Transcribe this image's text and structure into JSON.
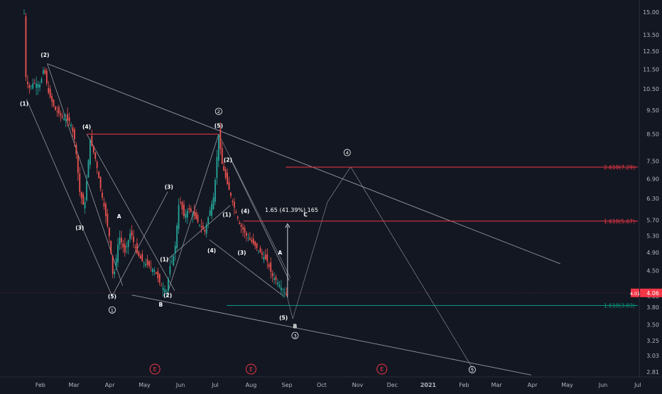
{
  "chart_data": {
    "type": "candlestick",
    "yscale": "log",
    "ylim": [
      2.75,
      16.0
    ],
    "x_range_days": [
      -20,
      570
    ],
    "month_ticks": [
      {
        "label": "Feb",
        "day": 14
      },
      {
        "label": "Mar",
        "day": 43
      },
      {
        "label": "Apr",
        "day": 74
      },
      {
        "label": "May",
        "day": 104
      },
      {
        "label": "Jun",
        "day": 135
      },
      {
        "label": "Jul",
        "day": 165
      },
      {
        "label": "Aug",
        "day": 196
      },
      {
        "label": "Sep",
        "day": 227
      },
      {
        "label": "Oct",
        "day": 257
      },
      {
        "label": "Nov",
        "day": 288
      },
      {
        "label": "Dec",
        "day": 318
      },
      {
        "label": "2021",
        "day": 349
      },
      {
        "label": "Feb",
        "day": 380
      },
      {
        "label": "Mar",
        "day": 408
      },
      {
        "label": "Apr",
        "day": 439
      },
      {
        "label": "May",
        "day": 469
      },
      {
        "label": "Jun",
        "day": 500
      },
      {
        "label": "Jul",
        "day": 530
      }
    ],
    "y_ticks": [
      "15.00",
      "13.50",
      "12.50",
      "11.50",
      "10.50",
      "9.50",
      "8.50",
      "7.50",
      "6.90",
      "6.30",
      "5.70",
      "5.30",
      "4.90",
      "4.50",
      "4.00",
      "3.80",
      "3.50",
      "3.25",
      "3.03",
      "2.81"
    ],
    "price_path": [
      [
        0,
        14.9
      ],
      [
        1,
        11.2
      ],
      [
        4,
        10.5
      ],
      [
        8,
        10.8
      ],
      [
        14,
        10.7
      ],
      [
        17,
        11.6
      ],
      [
        21,
        10.3
      ],
      [
        27,
        9.5
      ],
      [
        33,
        9.2
      ],
      [
        40,
        9.0
      ],
      [
        44,
        8.2
      ],
      [
        48,
        6.5
      ],
      [
        52,
        6.0
      ],
      [
        57,
        8.3
      ],
      [
        62,
        7.5
      ],
      [
        66,
        6.6
      ],
      [
        70,
        5.9
      ],
      [
        74,
        5.2
      ],
      [
        77,
        4.3
      ],
      [
        82,
        5.3
      ],
      [
        87,
        4.9
      ],
      [
        92,
        5.4
      ],
      [
        97,
        4.9
      ],
      [
        102,
        4.7
      ],
      [
        108,
        4.6
      ],
      [
        113,
        4.5
      ],
      [
        118,
        4.2
      ],
      [
        123,
        4.1
      ],
      [
        126,
        4.6
      ],
      [
        130,
        4.9
      ],
      [
        134,
        6.3
      ],
      [
        138,
        5.8
      ],
      [
        142,
        6.0
      ],
      [
        147,
        5.8
      ],
      [
        151,
        5.6
      ],
      [
        156,
        5.4
      ],
      [
        160,
        5.9
      ],
      [
        164,
        6.4
      ],
      [
        168,
        8.5
      ],
      [
        171,
        7.4
      ],
      [
        175,
        6.8
      ],
      [
        180,
        6.2
      ],
      [
        186,
        5.6
      ],
      [
        192,
        5.3
      ],
      [
        198,
        5.1
      ],
      [
        204,
        4.9
      ],
      [
        210,
        4.7
      ],
      [
        214,
        4.4
      ],
      [
        218,
        4.3
      ],
      [
        224,
        4.1
      ],
      [
        227,
        4.0
      ]
    ],
    "last_price": "4.06",
    "current_label": "4.01",
    "fib_levels": [
      {
        "label": "2.618(7.29)",
        "value": 7.29,
        "color": "#f23645"
      },
      {
        "label": "1.618(5.67)",
        "value": 5.67,
        "color": "#f23645"
      },
      {
        "label": "1.618(3.83)",
        "value": 3.83,
        "color": "#089981"
      }
    ],
    "measure_label": "1.65 (41.39%) 165",
    "wave_labels": [
      {
        "text": "(2)",
        "day": 18,
        "price": 12.3
      },
      {
        "text": "(1)",
        "day": 0,
        "price": 9.8
      },
      {
        "text": "(4)",
        "day": 54,
        "price": 8.8
      },
      {
        "text": "(3)",
        "day": 48,
        "price": 5.5
      },
      {
        "text": "A",
        "day": 82,
        "price": 5.8
      },
      {
        "text": "(5)",
        "day": 76,
        "price": 4.0
      },
      {
        "text": "1",
        "day": 76,
        "price": 3.75,
        "circled": true
      },
      {
        "text": "(3)",
        "day": 125,
        "price": 6.65
      },
      {
        "text": "(1)",
        "day": 121,
        "price": 4.75
      },
      {
        "text": "(2)",
        "day": 124,
        "price": 4.02
      },
      {
        "text": "B",
        "day": 118,
        "price": 3.85
      },
      {
        "text": "2",
        "day": 168,
        "price": 9.45,
        "circled": true
      },
      {
        "text": "(5)",
        "day": 168,
        "price": 8.85
      },
      {
        "text": "(4)",
        "day": 162,
        "price": 4.95
      },
      {
        "text": "(1)",
        "day": 175,
        "price": 5.85
      },
      {
        "text": "(2)",
        "day": 176,
        "price": 7.55
      },
      {
        "text": "(4)",
        "day": 191,
        "price": 5.95
      },
      {
        "text": "(3)",
        "day": 188,
        "price": 4.9
      },
      {
        "text": "A",
        "day": 221,
        "price": 4.9
      },
      {
        "text": "(5)",
        "day": 224,
        "price": 3.62
      },
      {
        "text": "B",
        "day": 234,
        "price": 3.48
      },
      {
        "text": "3",
        "day": 234,
        "price": 3.33,
        "circled": true
      },
      {
        "text": "C",
        "day": 243,
        "price": 5.85
      },
      {
        "text": "4",
        "day": 279,
        "price": 7.8,
        "circled": true
      },
      {
        "text": "5",
        "day": 387,
        "price": 2.84,
        "circled": true
      }
    ],
    "event_markers": [
      {
        "label": "E",
        "day": 113
      },
      {
        "label": "E",
        "day": 196
      },
      {
        "label": "E",
        "day": 309
      }
    ]
  }
}
